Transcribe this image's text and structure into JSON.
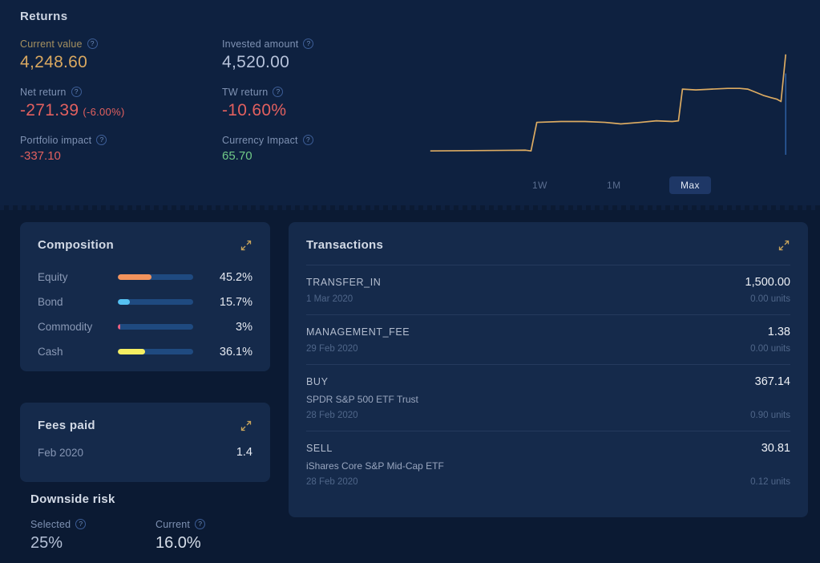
{
  "colors": {
    "page_bg": "#0b1a33",
    "top_bg": "#0e2140",
    "card_bg": "#152a4b",
    "accent_gold": "#d9a860",
    "negative_red": "#e2605f",
    "positive_green": "#70c987",
    "chart_line": "#dcab62",
    "chart_cursor": "#2e5fa3",
    "range_active_bg": "#1e3766",
    "bar_track": "#1f4a80"
  },
  "returns": {
    "title": "Returns",
    "stats": [
      {
        "label": "Current value",
        "value": "4,248.60",
        "color": "gold",
        "size": "large",
        "label_gold": true
      },
      {
        "label": "Net return",
        "value": "-271.39",
        "suffix": "(-6.00%)",
        "color": "red",
        "size": "large"
      },
      {
        "label": "Portfolio impact",
        "value": "-337.10",
        "color": "red",
        "size": "small"
      },
      {
        "label": "Invested amount",
        "value": "4,520.00",
        "color": "light",
        "size": "large"
      },
      {
        "label": "TW return",
        "value": "-10.60%",
        "color": "red",
        "size": "large"
      },
      {
        "label": "Currency Impact",
        "value": "65.70",
        "color": "green",
        "size": "small"
      }
    ],
    "range_buttons": [
      {
        "label": "1W",
        "active": false
      },
      {
        "label": "1M",
        "active": false
      },
      {
        "label": "Max",
        "active": true
      }
    ]
  },
  "chart_data": {
    "type": "line",
    "title": "Portfolio value over time (unlabeled axes, range = Max)",
    "x_axis": {
      "tick_labels": [],
      "range_selected": "Max"
    },
    "y_axis": {
      "tick_labels": [],
      "visible": false
    },
    "grid": false,
    "legend": false,
    "units": "normalized percent of chart area (x: 0-100 left to right, y: 0-100 bottom to top)",
    "series": [
      {
        "name": "Portfolio value",
        "points": [
          [
            0.4,
            3.7
          ],
          [
            26.7,
            4.4
          ],
          [
            28.2,
            3.7
          ],
          [
            29.8,
            31.1
          ],
          [
            36.5,
            31.9
          ],
          [
            43.1,
            31.9
          ],
          [
            48.6,
            31.1
          ],
          [
            53.0,
            29.6
          ],
          [
            58.4,
            31.1
          ],
          [
            62.8,
            32.6
          ],
          [
            67.2,
            31.9
          ],
          [
            68.9,
            32.6
          ],
          [
            70.0,
            63.0
          ],
          [
            73.7,
            62.2
          ],
          [
            78.1,
            63.0
          ],
          [
            82.5,
            63.7
          ],
          [
            85.8,
            63.7
          ],
          [
            88.0,
            63.0
          ],
          [
            90.2,
            60.0
          ],
          [
            92.3,
            57.0
          ],
          [
            94.5,
            54.8
          ],
          [
            96.1,
            53.3
          ],
          [
            97.2,
            51.1
          ],
          [
            98.5,
            96.3
          ]
        ]
      }
    ],
    "cursor": {
      "x": 98.5,
      "y_top": 78,
      "y_bottom": 0
    }
  },
  "composition": {
    "title": "Composition",
    "rows": [
      {
        "label": "Equity",
        "pct": 45.2,
        "display": "45.2%",
        "color": "#f2935c"
      },
      {
        "label": "Bond",
        "pct": 15.7,
        "display": "15.7%",
        "color": "#55c1f2"
      },
      {
        "label": "Commodity",
        "pct": 3,
        "display": "3%",
        "color": "#ef5f80"
      },
      {
        "label": "Cash",
        "pct": 36.1,
        "display": "36.1%",
        "color": "#f5ee62"
      }
    ]
  },
  "fees": {
    "title": "Fees paid",
    "rows": [
      {
        "label": "Feb 2020",
        "value": "1.4"
      }
    ]
  },
  "downside": {
    "title": "Downside risk",
    "stats": [
      {
        "label": "Selected",
        "value": "25%"
      },
      {
        "label": "Current",
        "value": "16.0%"
      }
    ]
  },
  "transactions": {
    "title": "Transactions",
    "rows": [
      {
        "type": "TRANSFER_IN",
        "name": "",
        "date": "1 Mar 2020",
        "amount": "1,500.00",
        "units": "0.00 units"
      },
      {
        "type": "MANAGEMENT_FEE",
        "name": "",
        "date": "29 Feb 2020",
        "amount": "1.38",
        "units": "0.00 units"
      },
      {
        "type": "BUY",
        "name": "SPDR S&P 500 ETF Trust",
        "date": "28 Feb 2020",
        "amount": "367.14",
        "units": "0.90 units"
      },
      {
        "type": "SELL",
        "name": "iShares Core S&P Mid-Cap ETF",
        "date": "28 Feb 2020",
        "amount": "30.81",
        "units": "0.12 units"
      }
    ]
  }
}
